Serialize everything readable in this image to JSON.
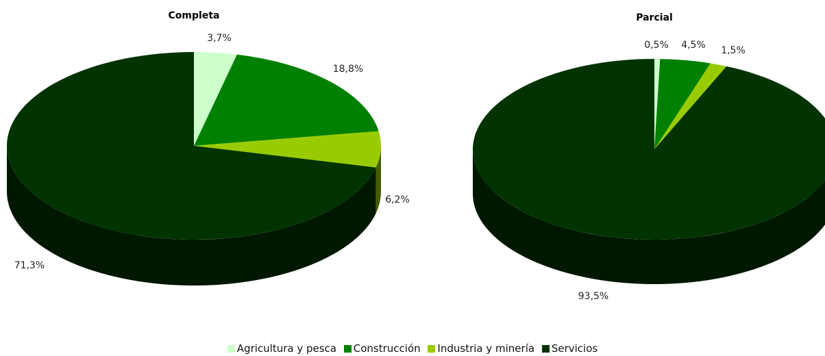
{
  "chart_data": [
    {
      "type": "pie",
      "title": "Completa",
      "categories": [
        "Agricultura y pesca",
        "Construcción",
        "Industria y minería",
        "Servicios"
      ],
      "values": [
        3.7,
        18.8,
        6.2,
        71.3
      ],
      "labels": [
        "3,7%",
        "18,8%",
        "6,2%",
        "71,3%"
      ],
      "unit": "%"
    },
    {
      "type": "pie",
      "title": "Parcial",
      "categories": [
        "Agricultura y pesca",
        "Construcción",
        "Industria y minería",
        "Servicios"
      ],
      "values": [
        0.5,
        4.5,
        1.5,
        93.5
      ],
      "labels": [
        "0,5%",
        "4,5%",
        "1,5%",
        "93,5%"
      ],
      "unit": "%"
    }
  ],
  "legend": {
    "placement": "bottom",
    "items": [
      {
        "label": "Agricultura y pesca",
        "color": "#ccffcc"
      },
      {
        "label": "Construcción",
        "color": "#008000"
      },
      {
        "label": "Industria y minería",
        "color": "#99cc00"
      },
      {
        "label": "Servicios",
        "color": "#003300"
      }
    ]
  }
}
